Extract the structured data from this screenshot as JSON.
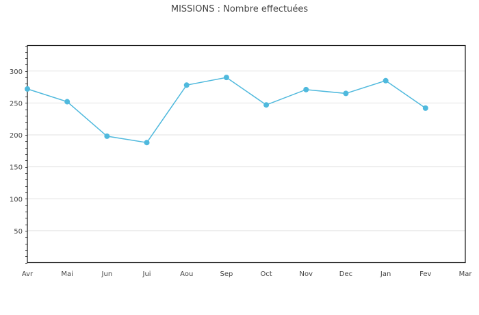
{
  "chart_data": {
    "type": "line",
    "title": "MISSIONS : Nombre effectuées",
    "xlabel": "",
    "ylabel": "",
    "categories": [
      "Avr",
      "Mai",
      "Jun",
      "Jui",
      "Aou",
      "Sep",
      "Oct",
      "Nov",
      "Dec",
      "Jan",
      "Fev",
      "Mar"
    ],
    "series": [
      {
        "name": "Nombre effectuées",
        "color": "#4fb9dd",
        "values": [
          272,
          252,
          198,
          188,
          278,
          290,
          247,
          271,
          265,
          285,
          242,
          null
        ]
      }
    ],
    "ylim": [
      0,
      340
    ],
    "yticks": [
      50,
      100,
      150,
      200,
      250,
      300
    ],
    "grid": true,
    "legend": "none"
  }
}
